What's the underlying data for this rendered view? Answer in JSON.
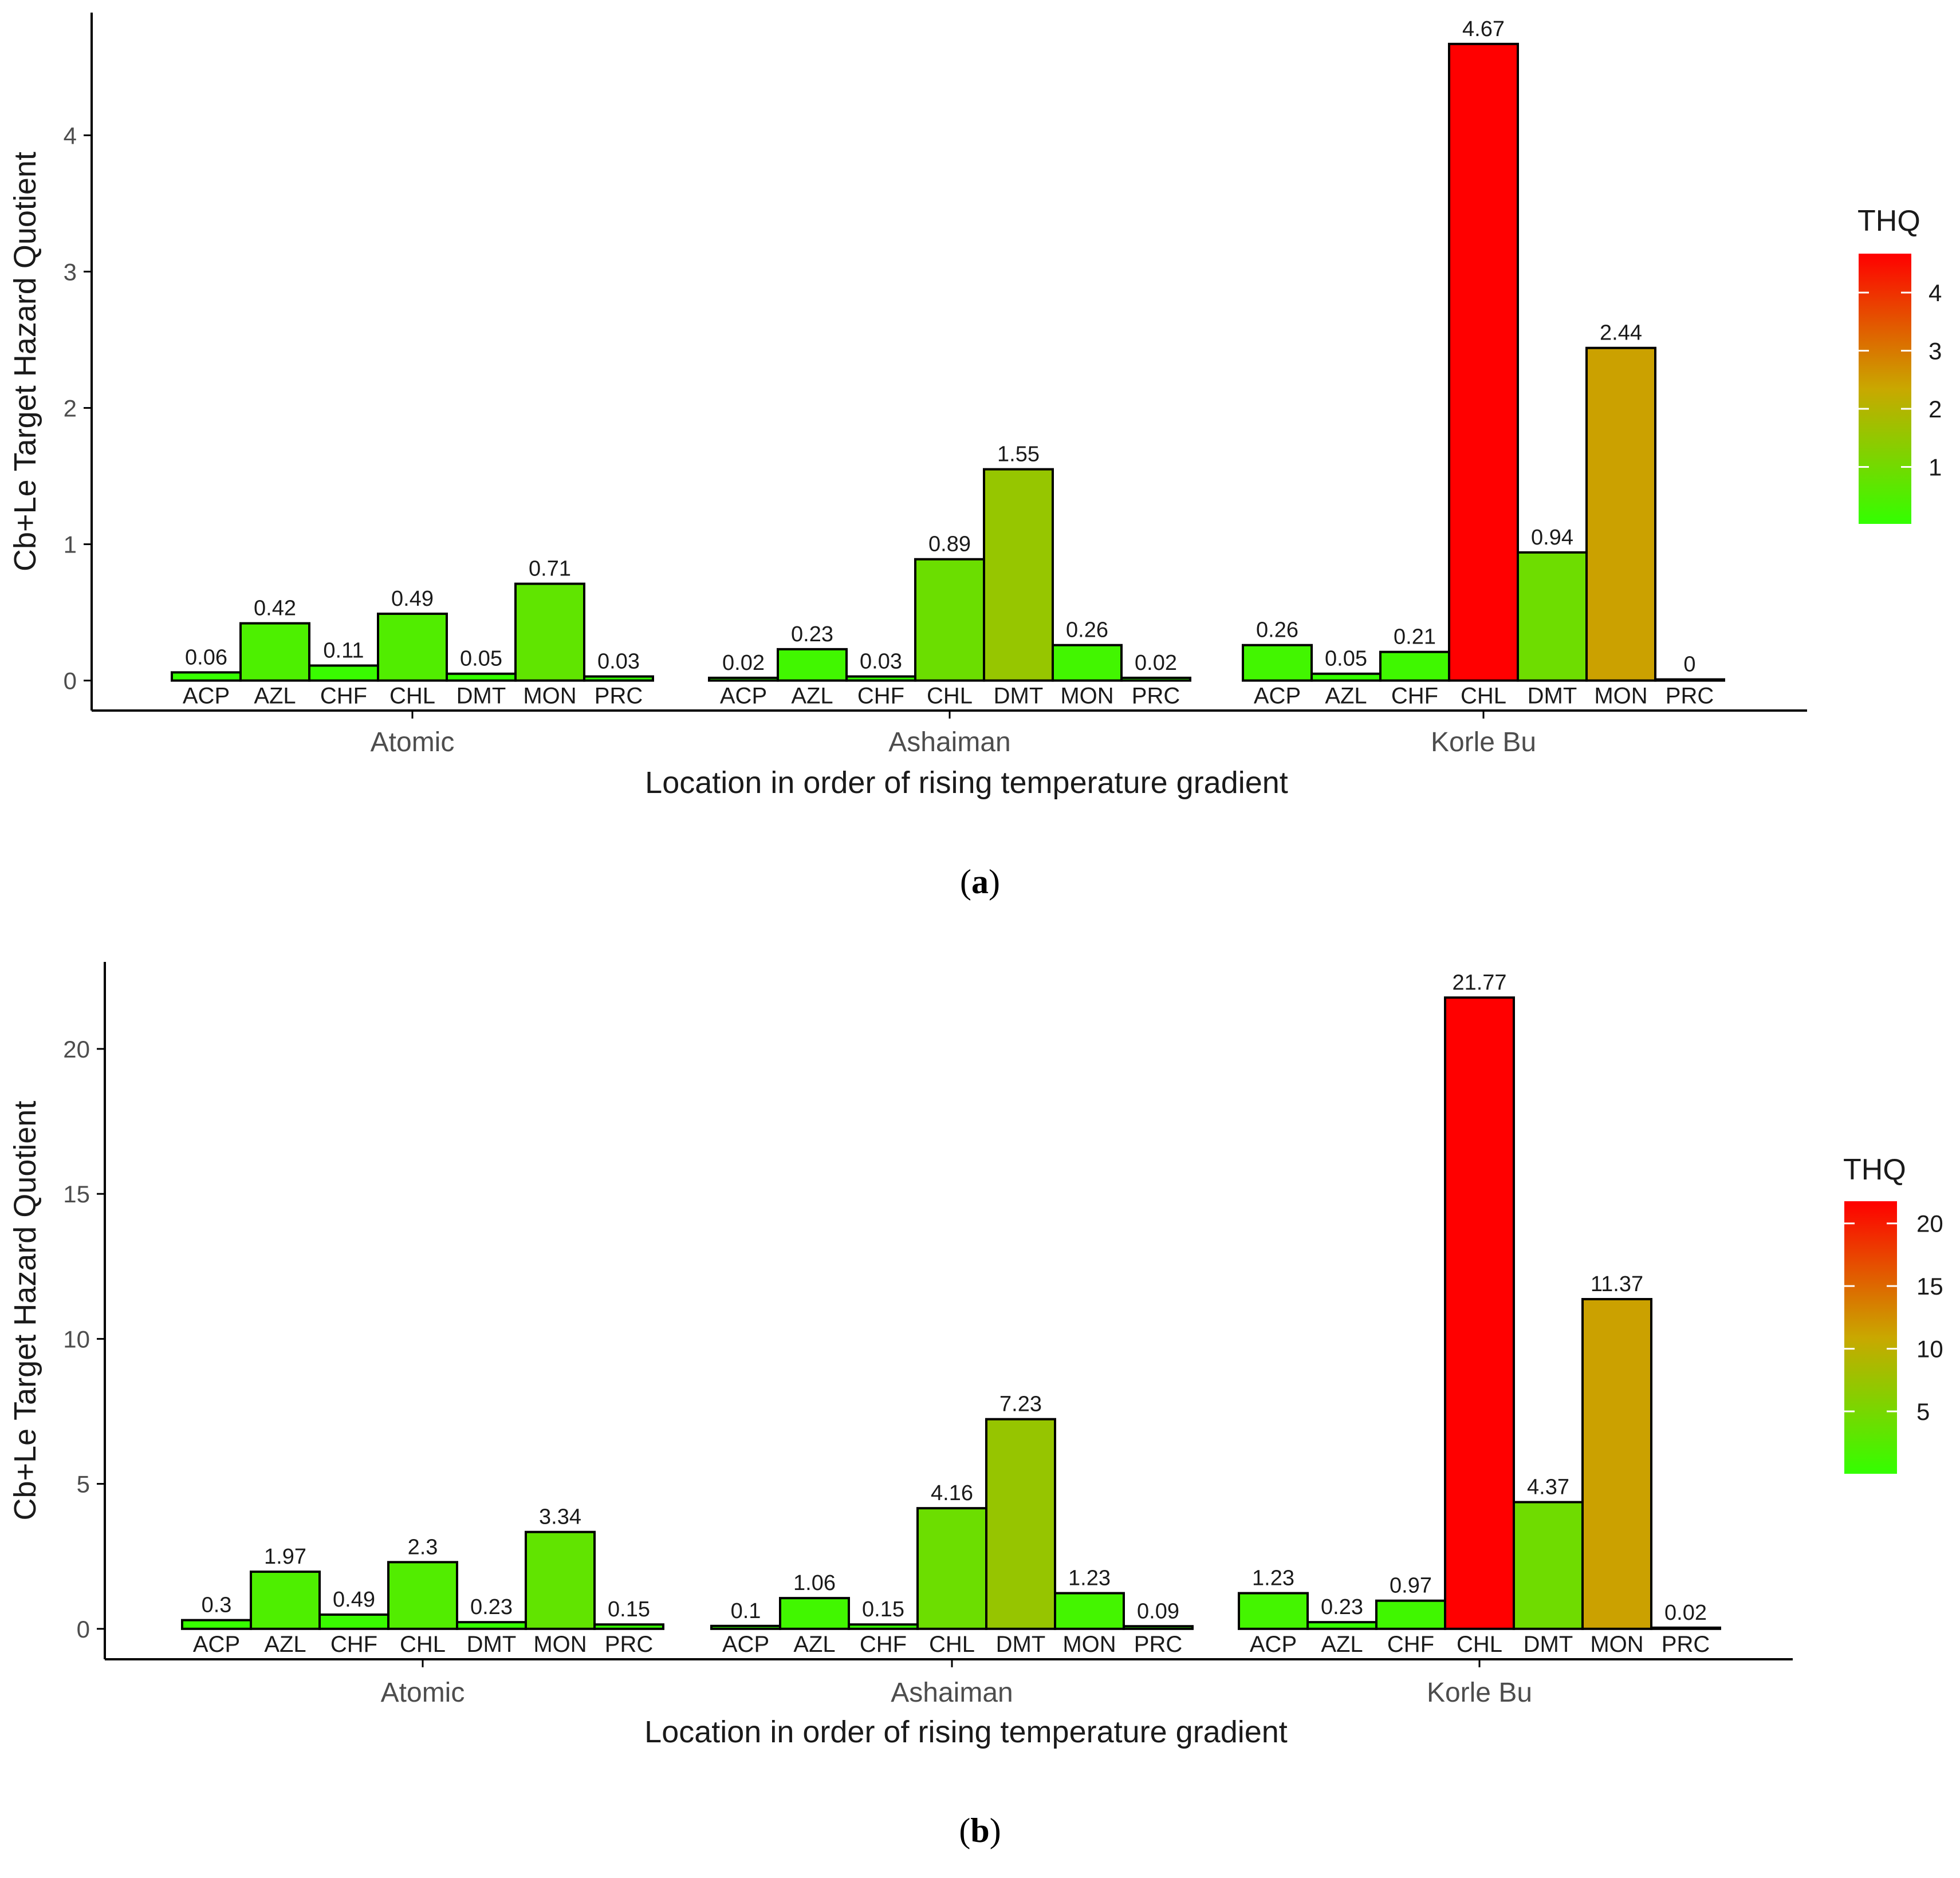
{
  "colors": {
    "low": "#33ff00",
    "mid": "#c9a800",
    "high": "#ff0000",
    "bar_stroke": "#000000",
    "axis": "#000000"
  },
  "chart_data": [
    {
      "type": "bar",
      "panel_label": "a",
      "ylabel": "Cb+Le Target Hazard Quotient",
      "xlabel": "Location in order of rising temperature gradient",
      "ylim": [
        -0.22,
        4.9
      ],
      "yticks": [
        0,
        1,
        2,
        3,
        4
      ],
      "ytick_labels": [
        "0",
        "1",
        "2",
        "3",
        "4"
      ],
      "legend_title": "THQ",
      "legend_range": [
        0.02,
        4.67
      ],
      "legend_ticks": [
        1,
        2,
        3,
        4
      ],
      "legend_tick_labels": [
        "1",
        "2",
        "3",
        "4"
      ],
      "groups": [
        {
          "name": "Atomic",
          "categories": [
            "ACP",
            "AZL",
            "CHF",
            "CHL",
            "DMT",
            "MON",
            "PRC"
          ],
          "values": [
            0.06,
            0.42,
            0.11,
            0.49,
            0.05,
            0.71,
            0.03
          ],
          "labels": [
            "0.06",
            "0.42",
            "0.11",
            "0.49",
            "0.05",
            "0.71",
            "0.03"
          ]
        },
        {
          "name": "Ashaiman",
          "categories": [
            "ACP",
            "AZL",
            "CHF",
            "CHL",
            "DMT",
            "MON",
            "PRC"
          ],
          "values": [
            0.02,
            0.23,
            0.03,
            0.89,
            1.55,
            0.26,
            0.02
          ],
          "labels": [
            "0.02",
            "0.23",
            "0.03",
            "0.89",
            "1.55",
            "0.26",
            "0.02"
          ]
        },
        {
          "name": "Korle Bu",
          "categories": [
            "ACP",
            "AZL",
            "CHF",
            "CHL",
            "DMT",
            "MON",
            "PRC"
          ],
          "values": [
            0.26,
            0.05,
            0.21,
            4.67,
            0.94,
            2.44,
            0
          ],
          "labels": [
            "0.26",
            "0.05",
            "0.21",
            "4.67",
            "0.94",
            "2.44",
            "0"
          ]
        }
      ]
    },
    {
      "type": "bar",
      "panel_label": "b",
      "ylabel": "Cb+Le Target Hazard Quotient",
      "xlabel": "Location in order of rising temperature gradient",
      "ylim": [
        -1.05,
        23.0
      ],
      "yticks": [
        0,
        5,
        10,
        15,
        20
      ],
      "ytick_labels": [
        "0",
        "5",
        "10",
        "15",
        "20"
      ],
      "legend_title": "THQ",
      "legend_range": [
        0.02,
        21.77
      ],
      "legend_ticks": [
        5,
        10,
        15,
        20
      ],
      "legend_tick_labels": [
        "5",
        "10",
        "15",
        "20"
      ],
      "groups": [
        {
          "name": "Atomic",
          "categories": [
            "ACP",
            "AZL",
            "CHF",
            "CHL",
            "DMT",
            "MON",
            "PRC"
          ],
          "values": [
            0.3,
            1.97,
            0.49,
            2.3,
            0.23,
            3.34,
            0.15
          ],
          "labels": [
            "0.3",
            "1.97",
            "0.49",
            "2.3",
            "0.23",
            "3.34",
            "0.15"
          ]
        },
        {
          "name": "Ashaiman",
          "categories": [
            "ACP",
            "AZL",
            "CHF",
            "CHL",
            "DMT",
            "MON",
            "PRC"
          ],
          "values": [
            0.1,
            1.06,
            0.15,
            4.16,
            7.23,
            1.23,
            0.09
          ],
          "labels": [
            "0.1",
            "1.06",
            "0.15",
            "4.16",
            "7.23",
            "1.23",
            "0.09"
          ]
        },
        {
          "name": "Korle Bu",
          "categories": [
            "ACP",
            "AZL",
            "CHF",
            "CHL",
            "DMT",
            "MON",
            "PRC"
          ],
          "values": [
            1.23,
            0.23,
            0.97,
            21.77,
            4.37,
            11.37,
            0.02
          ],
          "labels": [
            "1.23",
            "0.23",
            "0.97",
            "21.77",
            "4.37",
            "11.37",
            "0.02"
          ]
        }
      ]
    }
  ]
}
